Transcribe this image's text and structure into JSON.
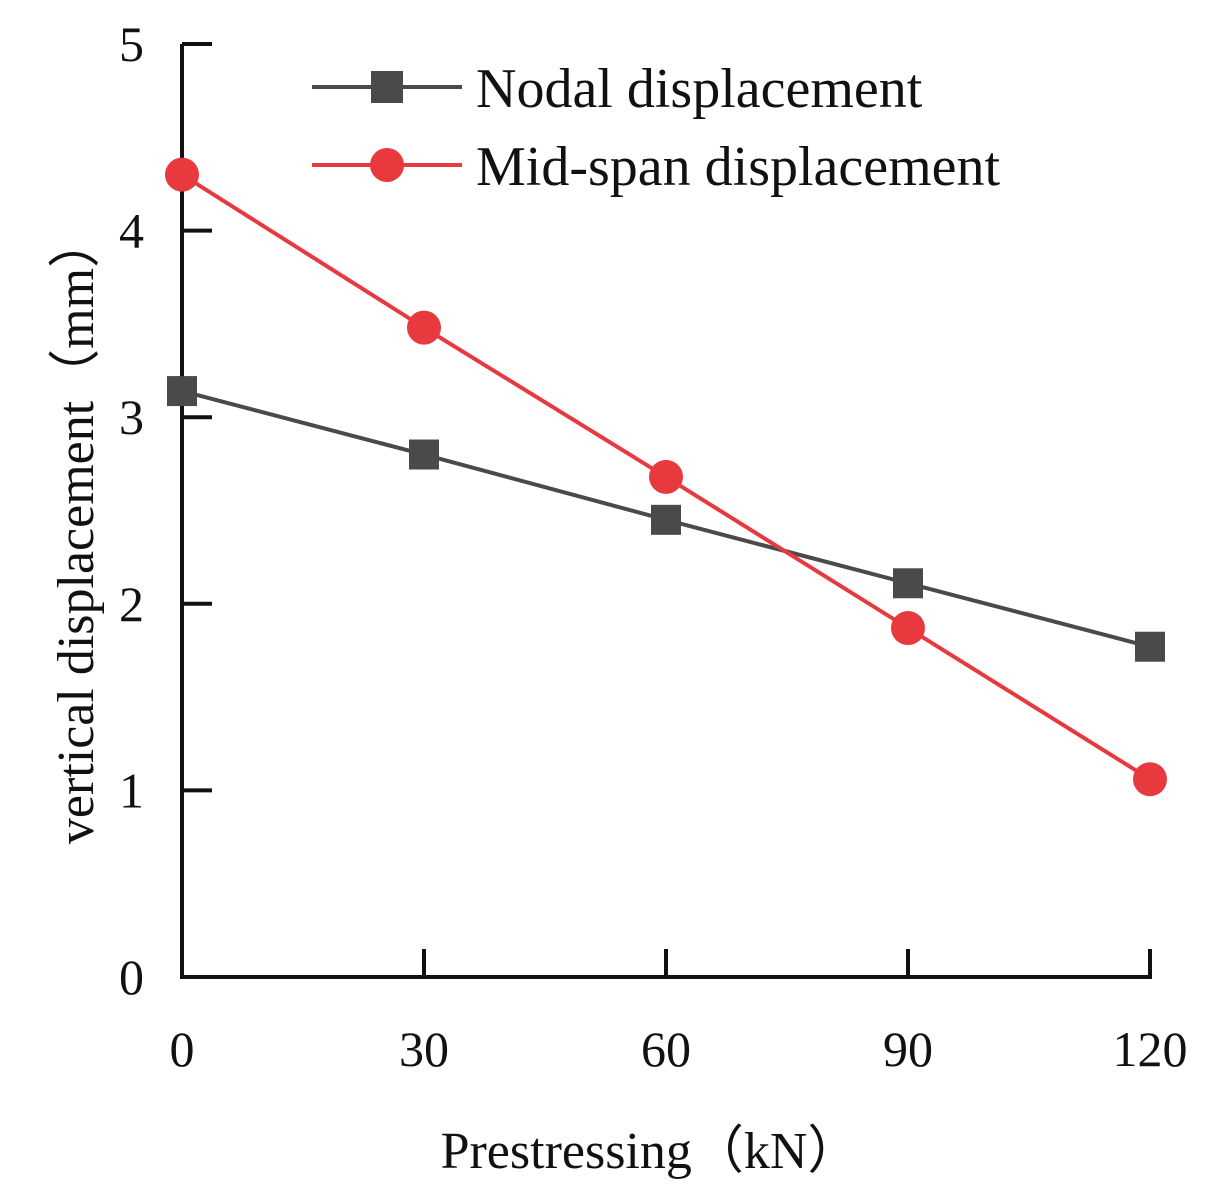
{
  "chart_data": {
    "type": "line",
    "title": "",
    "xlabel": "Prestressing（kN）",
    "ylabel": "vertical displacement（mm）",
    "x": [
      0,
      30,
      60,
      90,
      120
    ],
    "xlim": [
      0,
      120
    ],
    "ylim": [
      0,
      5
    ],
    "xticks": [
      "0",
      "30",
      "60",
      "90",
      "120"
    ],
    "yticks": [
      "0",
      "1",
      "2",
      "3",
      "4",
      "5"
    ],
    "grid": false,
    "legend_position": "top-right",
    "series": [
      {
        "name": "Nodal displacement",
        "marker": "square",
        "color": "#4a4a4a",
        "values": [
          3.14,
          2.8,
          2.45,
          2.11,
          1.77
        ]
      },
      {
        "name": "Mid-span displacement",
        "marker": "circle",
        "color": "#e8393f",
        "values": [
          4.3,
          3.48,
          2.68,
          1.87,
          1.06
        ]
      }
    ]
  }
}
